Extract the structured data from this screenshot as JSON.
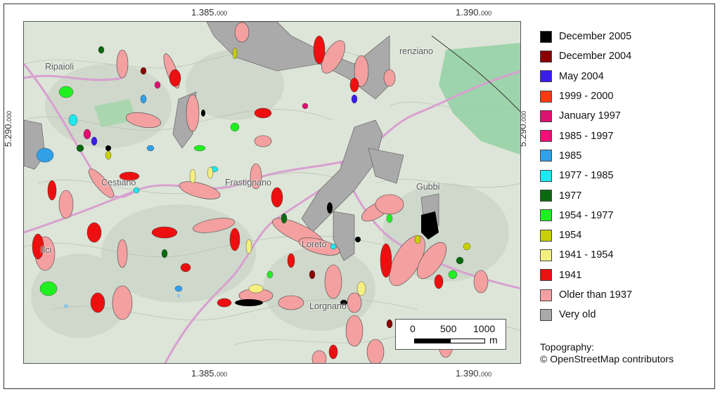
{
  "coords": {
    "top_left": "1.385.",
    "top_left_small": "000",
    "top_right": "1.390.",
    "top_right_small": "000",
    "bottom_left": "1.385.",
    "bottom_left_small": "000",
    "bottom_right": "1.390.",
    "bottom_right_small": "000",
    "left": "5.290.",
    "left_small": "000",
    "right": "5.290.",
    "right_small": "000"
  },
  "places": [
    "Ripaioli",
    "Cestiano",
    "Frastignano",
    "Ilci",
    "Loreto",
    "Lorgnano",
    "Gubbi",
    "renziano"
  ],
  "legend": [
    {
      "label": "December 2005",
      "color": "#000000"
    },
    {
      "label": "December 2004",
      "color": "#8b0000"
    },
    {
      "label": "May 2004",
      "color": "#3a1cf0"
    },
    {
      "label": "1999 - 2000",
      "color": "#ff3a10"
    },
    {
      "label": "January 1997",
      "color": "#e01070"
    },
    {
      "label": "1985 - 1997",
      "color": "#f0107a"
    },
    {
      "label": "1985",
      "color": "#30a0e8"
    },
    {
      "label": "1977 - 1985",
      "color": "#20e8f0"
    },
    {
      "label": "1977",
      "color": "#0a6a10"
    },
    {
      "label": "1954 - 1977",
      "color": "#20f020"
    },
    {
      "label": "1954",
      "color": "#c8d000"
    },
    {
      "label": "1941 - 1954",
      "color": "#f4f080"
    },
    {
      "label": "1941",
      "color": "#ee1010"
    },
    {
      "label": "Older than 1937",
      "color": "#f4a0a0"
    },
    {
      "label": "Very old",
      "color": "#aaaaaa"
    }
  ],
  "scalebar": {
    "ticks": [
      "0",
      "500",
      "1000"
    ],
    "unit": "m"
  },
  "attribution": {
    "line1": "Topography:",
    "line2": "© OpenStreetMap contributors"
  }
}
